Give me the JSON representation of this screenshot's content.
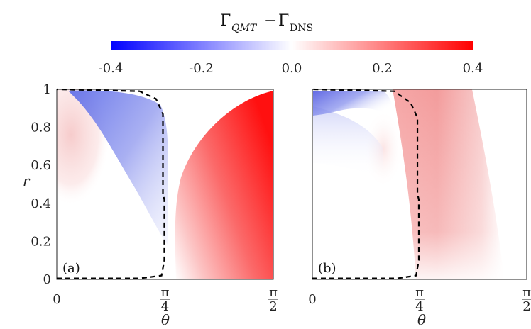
{
  "colorbar": {
    "title_gamma_1": "Γ",
    "title_sub_1": "QMT",
    "title_minus": "−",
    "title_gamma_2": "Γ",
    "title_sub_2": "DNS",
    "ticks": [
      "-0.4",
      "-0.2",
      "0.0",
      "0.2",
      "0.4"
    ],
    "range": [
      -0.4,
      0.4
    ],
    "low_color": "#0000ff",
    "mid_color": "#ffffff",
    "high_color": "#ff0000"
  },
  "chart_data": [
    {
      "type": "heatmap",
      "panel_label": "(a)",
      "xlabel": "θ",
      "ylabel": "r",
      "xlim": [
        0,
        1.5708
      ],
      "ylim": [
        0,
        1
      ],
      "x_ticks": [
        {
          "value": 0,
          "label": "0"
        },
        {
          "value": 0.7854,
          "label": "π/4"
        },
        {
          "value": 1.5708,
          "label": "π/2"
        }
      ],
      "y_ticks": [
        "0",
        "0.2",
        "0.4",
        "0.6",
        "0.8",
        "1"
      ],
      "regions": [
        {
          "name": "weak-positive-left",
          "theta_center": 0.12,
          "r_center": 0.75,
          "value": 0.05
        },
        {
          "name": "negative-band",
          "theta_center": 0.5,
          "r_center": 0.75,
          "value": -0.25
        },
        {
          "name": "strong-positive-right",
          "theta_center": 1.5,
          "r_center": 0.6,
          "value": 0.4
        }
      ],
      "dashed_boundary": [
        [
          0,
          0.005
        ],
        [
          0.6,
          0.005
        ],
        [
          0.76,
          0.02
        ],
        [
          0.78,
          0.1
        ],
        [
          0.78,
          0.42
        ],
        [
          0.77,
          0.45
        ],
        [
          0.77,
          0.87
        ],
        [
          0.72,
          0.95
        ],
        [
          0.6,
          0.99
        ],
        [
          0,
          1.0
        ]
      ]
    },
    {
      "type": "heatmap",
      "panel_label": "(b)",
      "xlabel": "θ",
      "ylabel": "",
      "xlim": [
        0,
        1.5708
      ],
      "ylim": [
        0,
        1
      ],
      "x_ticks": [
        {
          "value": 0,
          "label": "0"
        },
        {
          "value": 0.7854,
          "label": "π/4"
        },
        {
          "value": 1.5708,
          "label": "π/2"
        }
      ],
      "y_ticks": [],
      "regions": [
        {
          "name": "negative-top-left",
          "theta_center": 0.2,
          "r_center": 0.88,
          "value": -0.3
        },
        {
          "name": "weak-positive-middle",
          "theta_center": 0.55,
          "r_center": 0.65,
          "value": 0.05
        },
        {
          "name": "positive-right-band",
          "theta_center": 1.0,
          "r_center": 0.7,
          "value": 0.2
        }
      ],
      "dashed_boundary": [
        [
          0,
          0.005
        ],
        [
          0.62,
          0.005
        ],
        [
          0.76,
          0.02
        ],
        [
          0.78,
          0.1
        ],
        [
          0.78,
          0.42
        ],
        [
          0.77,
          0.45
        ],
        [
          0.77,
          0.85
        ],
        [
          0.72,
          0.93
        ],
        [
          0.6,
          0.99
        ],
        [
          0,
          1.0
        ]
      ]
    }
  ]
}
